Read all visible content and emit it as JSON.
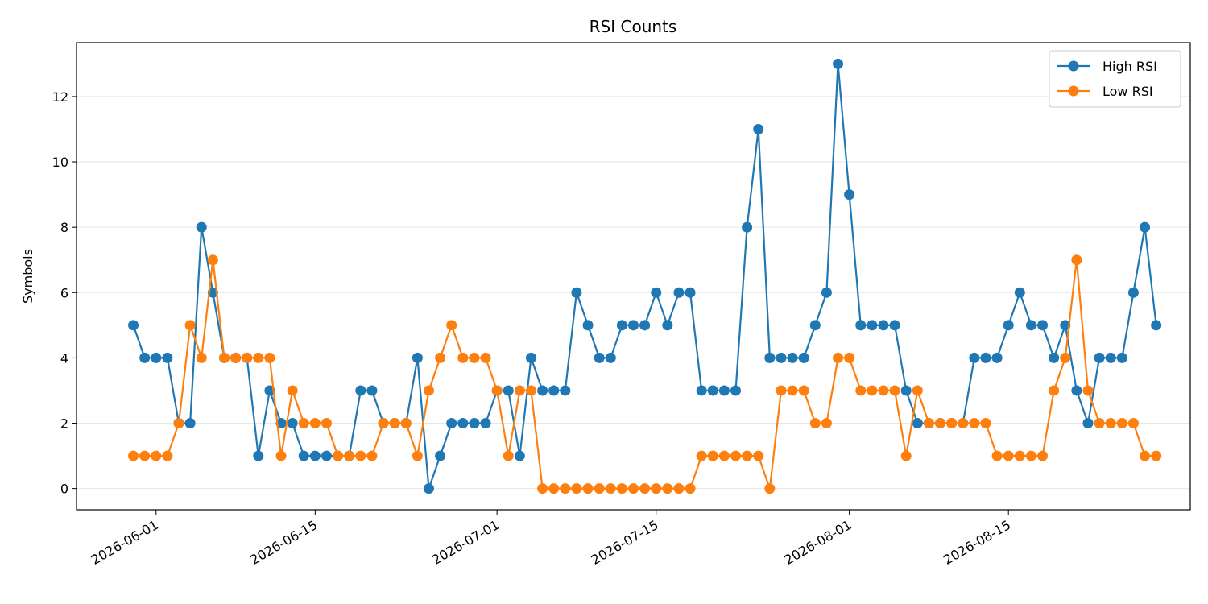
{
  "chart_data": {
    "type": "line",
    "title": "RSI Counts",
    "xlabel": "",
    "ylabel": "Symbols",
    "x_start": "2026-05-30",
    "x_end": "2026-08-27",
    "xlim": [
      "2026-05-25",
      "2026-08-31"
    ],
    "ylim": [
      -0.65,
      13.65
    ],
    "yticks": [
      0,
      2,
      4,
      6,
      8,
      10,
      12
    ],
    "xticks": [
      "2026-06-01",
      "2026-06-15",
      "2026-07-01",
      "2026-07-15",
      "2026-08-01",
      "2026-08-15"
    ],
    "grid": "horizontal",
    "legend_position": "top-right",
    "series": [
      {
        "name": "High RSI",
        "color": "#1f77b4",
        "values": [
          5,
          4,
          4,
          4,
          2,
          2,
          8,
          6,
          4,
          4,
          4,
          1,
          3,
          2,
          2,
          1,
          1,
          1,
          1,
          1,
          3,
          3,
          2,
          2,
          2,
          4,
          0,
          1,
          2,
          2,
          2,
          2,
          3,
          3,
          1,
          4,
          3,
          3,
          3,
          6,
          5,
          4,
          4,
          5,
          5,
          5,
          6,
          5,
          6,
          6,
          3,
          3,
          3,
          3,
          8,
          11,
          4,
          4,
          4,
          4,
          5,
          6,
          13,
          9,
          5,
          5,
          5,
          5,
          3,
          2,
          2,
          2,
          2,
          2,
          4,
          4,
          4,
          5,
          6,
          5,
          5,
          4,
          5,
          3,
          2,
          4,
          4,
          4,
          6,
          8,
          5
        ]
      },
      {
        "name": "Low RSI",
        "color": "#ff7f0e",
        "values": [
          1,
          1,
          1,
          1,
          2,
          5,
          4,
          7,
          4,
          4,
          4,
          4,
          4,
          1,
          3,
          2,
          2,
          2,
          1,
          1,
          1,
          1,
          2,
          2,
          2,
          1,
          3,
          4,
          5,
          4,
          4,
          4,
          3,
          1,
          3,
          3,
          0,
          0,
          0,
          0,
          0,
          0,
          0,
          0,
          0,
          0,
          0,
          0,
          0,
          0,
          1,
          1,
          1,
          1,
          1,
          1,
          0,
          3,
          3,
          3,
          2,
          2,
          4,
          4,
          3,
          3,
          3,
          3,
          1,
          3,
          2,
          2,
          2,
          2,
          2,
          2,
          1,
          1,
          1,
          1,
          1,
          3,
          4,
          7,
          3,
          2,
          2,
          2,
          2,
          1,
          1
        ]
      }
    ]
  }
}
